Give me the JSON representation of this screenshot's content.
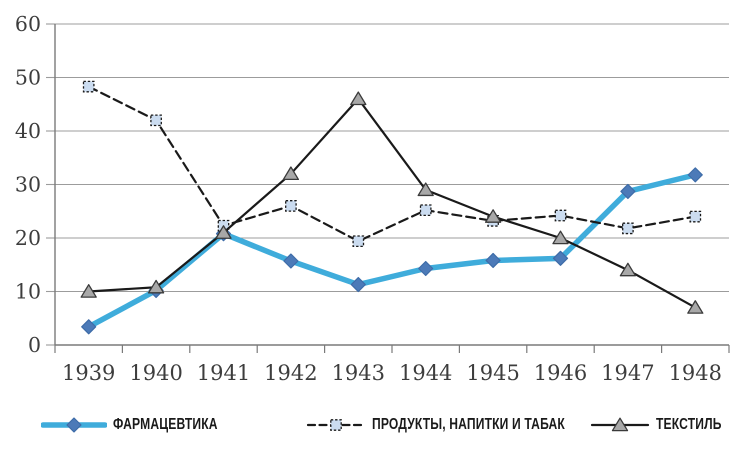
{
  "chart_data": {
    "type": "line",
    "title": "",
    "xlabel": "",
    "ylabel": "",
    "categories": [
      "1939",
      "1940",
      "1941",
      "1942",
      "1943",
      "1944",
      "1945",
      "1946",
      "1947",
      "1948"
    ],
    "series": [
      {
        "name": "ФАРМАЦЕВТИКА",
        "values": [
          3.4,
          10.2,
          20.8,
          15.7,
          11.3,
          14.3,
          15.8,
          16.2,
          28.7,
          31.8
        ],
        "line_color": "#3FACDB",
        "line_style": "solid",
        "line_width": 5.5,
        "marker": "diamond",
        "marker_fill": "#4C7AB8",
        "marker_stroke": "#3E6CA8"
      },
      {
        "name": "ПРОДУКТЫ, НАПИТКИ И ТАБАК",
        "values": [
          48.3,
          42,
          22.3,
          26,
          19.4,
          25.2,
          23.2,
          24.2,
          21.8,
          24
        ],
        "line_color": "#1a1a1a",
        "line_style": "dashed",
        "line_width": 2.2,
        "marker": "square",
        "marker_fill": "#CBDCF0",
        "marker_stroke": "#1a1a1a"
      },
      {
        "name": "ТЕКСТИЛЬ",
        "values": [
          10,
          10.8,
          21,
          32,
          46,
          29,
          24,
          20,
          14,
          7
        ],
        "line_color": "#1a1a1a",
        "line_style": "solid",
        "line_width": 2.2,
        "marker": "triangle",
        "marker_fill": "#A8A8A8",
        "marker_stroke": "#3a3a3a"
      }
    ],
    "ylim": [
      0,
      60
    ],
    "ytick_step": 10,
    "grid": true,
    "legend_position": "bottom",
    "colors": {
      "grid": "#9c9c9c",
      "axis": "#7a7a7a",
      "tick_label": "#3d3d3d",
      "background": "#ffffff"
    }
  }
}
